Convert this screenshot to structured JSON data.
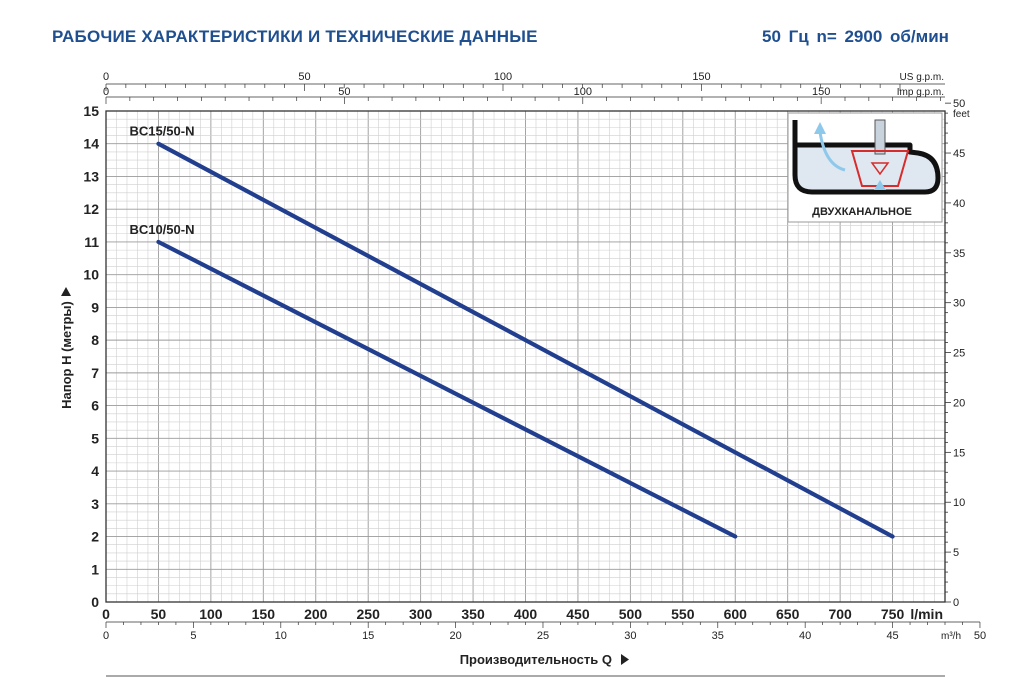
{
  "header": {
    "title": "РАБОЧИЕ ХАРАКТЕРИСТИКИ И ТЕХНИЧЕСКИЕ ДАННЫЕ",
    "specs": "50 Гц    n= 2900 об/мин"
  },
  "chart_data": {
    "type": "line",
    "x_unit": "l/min",
    "xlim": [
      0,
      800
    ],
    "ylim": [
      0,
      15
    ],
    "ylabel": "Напор H (метры)",
    "xlabel": "Производительность Q",
    "grid": true,
    "series": [
      {
        "name": "BC15/50-N",
        "points": [
          [
            50,
            14
          ],
          [
            750,
            2
          ]
        ]
      },
      {
        "name": "BC10/50-N",
        "points": [
          [
            50,
            11
          ],
          [
            600,
            2
          ]
        ]
      }
    ],
    "x_ticks": [
      "0",
      "50",
      "100",
      "150",
      "200",
      "250",
      "300",
      "350",
      "400",
      "450",
      "500",
      "550",
      "600",
      "650",
      "700",
      "750"
    ],
    "y_ticks": [
      "0",
      "1",
      "2",
      "3",
      "4",
      "5",
      "6",
      "7",
      "8",
      "9",
      "10",
      "11",
      "12",
      "13",
      "14",
      "15"
    ],
    "axes": {
      "us_gpm": {
        "label": "US g.p.m.",
        "max": 200,
        "ticks": [
          "0",
          "50",
          "100",
          "150"
        ]
      },
      "imp_gpm": {
        "label": "Imp g.p.m.",
        "max": 175,
        "ticks": [
          "0",
          "50",
          "100",
          "150"
        ]
      },
      "m3h": {
        "label": "m³/h",
        "max": 50,
        "ticks": [
          "0",
          "5",
          "10",
          "15",
          "20",
          "25",
          "30",
          "35",
          "40",
          "45",
          "50"
        ]
      },
      "feet": {
        "label": "feet",
        "max": 50,
        "ticks": [
          "0",
          "5",
          "10",
          "15",
          "20",
          "25",
          "30",
          "35",
          "40",
          "45",
          "50"
        ]
      }
    },
    "inset_label": "ДВУХКАНАЛЬНОЕ",
    "colors": {
      "curve": "#213f8e",
      "grid": "#b8b8b8",
      "title": "#1f4f8f",
      "inset_red": "#d72c2c",
      "inset_arrow": "#8ec9ec"
    }
  }
}
